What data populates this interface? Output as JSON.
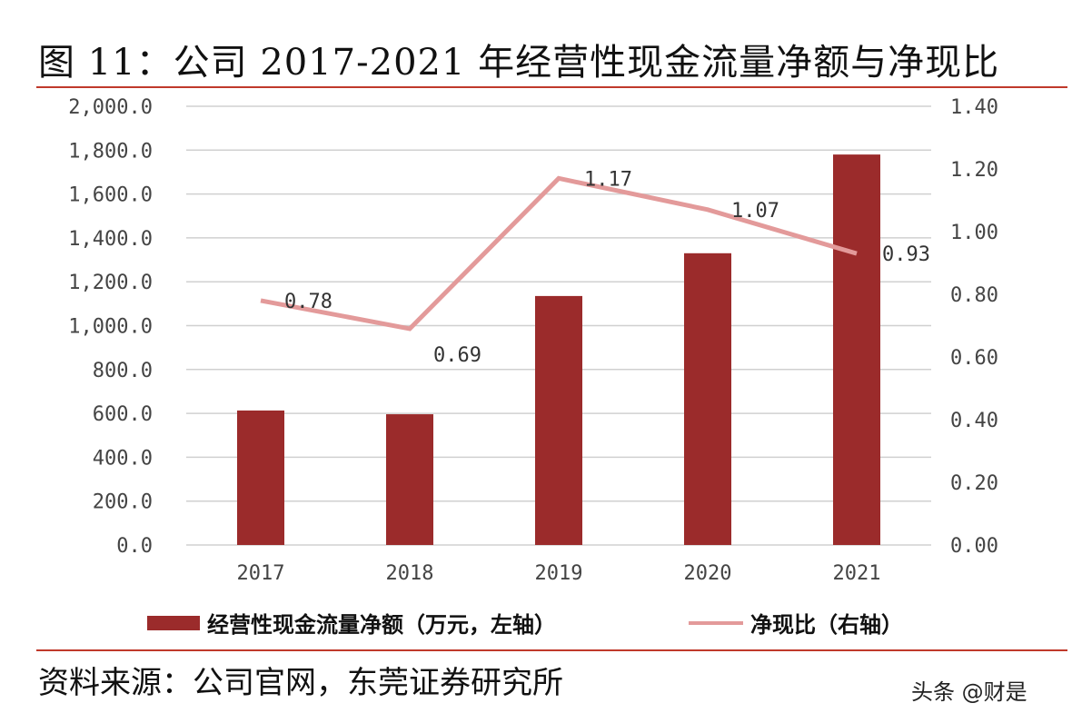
{
  "title": "图 11：公司 2017-2021 年经营性现金流量净额与净现比",
  "footer": "资料来源：公司官网，东莞证券研究所",
  "watermark": "头条 @财是",
  "chart_data": {
    "type": "bar+line",
    "categories": [
      "2017",
      "2018",
      "2019",
      "2020",
      "2021"
    ],
    "series": [
      {
        "name": "经营性现金流量净额（万元，左轴）",
        "type": "bar",
        "axis": "left",
        "color": "#9b2b2b",
        "values": [
          613,
          596,
          1135,
          1330,
          1780
        ]
      },
      {
        "name": "净现比（右轴）",
        "type": "line",
        "axis": "right",
        "color": "#e39a9a",
        "values": [
          0.78,
          0.69,
          1.17,
          1.07,
          0.93
        ],
        "labels": [
          "0.78",
          "0.69",
          "1.17",
          "1.07",
          "0.93"
        ]
      }
    ],
    "y_left": {
      "lim": [
        0,
        2000
      ],
      "ticks": [
        "0.0",
        "200.0",
        "400.0",
        "600.0",
        "800.0",
        "1,000.0",
        "1,200.0",
        "1,400.0",
        "1,600.0",
        "1,800.0",
        "2,000.0"
      ]
    },
    "y_right": {
      "lim": [
        0,
        1.4
      ],
      "ticks": [
        "0.00",
        "0.20",
        "0.40",
        "0.60",
        "0.80",
        "1.00",
        "1.20",
        "1.40"
      ]
    },
    "grid": true,
    "legend": "bottom"
  }
}
